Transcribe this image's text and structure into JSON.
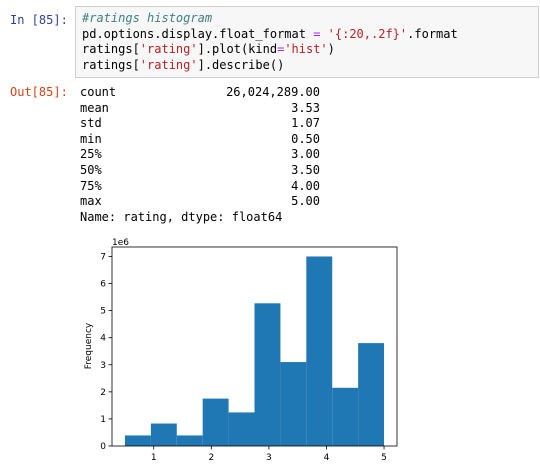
{
  "input": {
    "prompt": "In [85]:",
    "comment": "#ratings histogram",
    "line2_a": "pd.options.display.float_format ",
    "line2_eq": "=",
    "line2_b": " ",
    "line2_str": "'{:20,.2f}'",
    "line2_c": ".format",
    "line3_a": "ratings[",
    "line3_str": "'rating'",
    "line3_b": "].plot(kind",
    "line3_eq": "=",
    "line3_str2": "'hist'",
    "line3_c": ")",
    "line4_a": "ratings[",
    "line4_str": "'rating'",
    "line4_b": "].describe()"
  },
  "output": {
    "prompt": "Out[85]:",
    "stats": [
      {
        "label": "count",
        "value": "26,024,289.00"
      },
      {
        "label": "mean",
        "value": "3.53"
      },
      {
        "label": "std",
        "value": "1.07"
      },
      {
        "label": "min",
        "value": "0.50"
      },
      {
        "label": "25%",
        "value": "3.00"
      },
      {
        "label": "50%",
        "value": "3.50"
      },
      {
        "label": "75%",
        "value": "4.00"
      },
      {
        "label": "max",
        "value": "5.00"
      }
    ],
    "footer": "Name: rating, dtype: float64"
  },
  "colors": {
    "bar": "#1f77b4"
  },
  "chart_data": {
    "type": "bar",
    "title": "",
    "xlabel": "",
    "ylabel": "Frequency",
    "offset_label": "1e6",
    "bins": [
      {
        "x0": 0.5,
        "x1": 0.95,
        "value": 0.39
      },
      {
        "x0": 0.95,
        "x1": 1.4,
        "value": 0.83
      },
      {
        "x0": 1.4,
        "x1": 1.85,
        "value": 0.39
      },
      {
        "x0": 1.85,
        "x1": 2.3,
        "value": 1.75
      },
      {
        "x0": 2.3,
        "x1": 2.75,
        "value": 1.24
      },
      {
        "x0": 2.75,
        "x1": 3.2,
        "value": 5.27
      },
      {
        "x0": 3.2,
        "x1": 3.65,
        "value": 3.1
      },
      {
        "x0": 3.65,
        "x1": 4.1,
        "value": 7.0
      },
      {
        "x0": 4.1,
        "x1": 4.55,
        "value": 2.15
      },
      {
        "x0": 4.55,
        "x1": 5.0,
        "value": 3.8
      }
    ],
    "xlim": [
      0.275,
      5.225
    ],
    "ylim": [
      0,
      7.35
    ],
    "xticks": [
      1,
      2,
      3,
      4,
      5
    ],
    "yticks": [
      0,
      1,
      2,
      3,
      4,
      5,
      6,
      7
    ],
    "grid": false
  }
}
